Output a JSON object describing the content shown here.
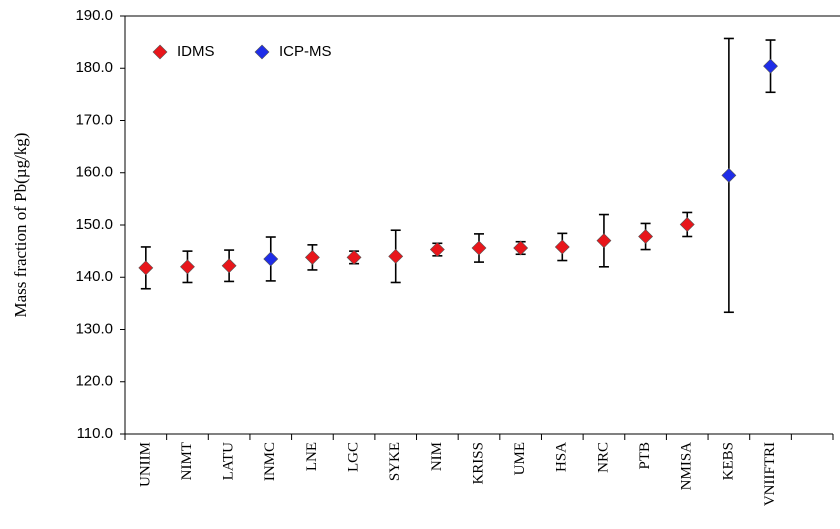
{
  "chart_data": {
    "type": "errorbar",
    "y_label": "Mass fraction of Pb(µg/kg)",
    "categories": [
      "UNIIM",
      "NIMT",
      "LATU",
      "INMC",
      "LNE",
      "LGC",
      "SYKE",
      "NIM",
      "KRISS",
      "UME",
      "HSA",
      "NRC",
      "PTB",
      "NMISA",
      "KEBS",
      "VNIIFTRI",
      null
    ],
    "series": [
      {
        "name": "IDMS",
        "color": "#e8161b",
        "values": [
          141.8,
          142.0,
          142.2,
          null,
          143.8,
          143.8,
          144.0,
          145.3,
          145.6,
          145.6,
          145.8,
          147.0,
          147.8,
          150.1,
          null,
          null,
          null
        ],
        "errors": [
          4.0,
          3.0,
          3.0,
          null,
          2.4,
          1.2,
          5.0,
          1.2,
          2.7,
          1.2,
          2.6,
          5.0,
          2.5,
          2.3,
          null,
          null,
          null
        ]
      },
      {
        "name": "ICP-MS",
        "color": "#1f2de8",
        "values": [
          null,
          null,
          null,
          143.5,
          null,
          null,
          null,
          null,
          null,
          null,
          null,
          null,
          null,
          null,
          159.5,
          180.4,
          null
        ],
        "errors": [
          null,
          null,
          null,
          4.2,
          null,
          null,
          null,
          null,
          null,
          null,
          null,
          null,
          null,
          null,
          26.2,
          5.0,
          null
        ]
      }
    ],
    "ylim": [
      110,
      190
    ],
    "yticks": [
      {
        "value": 110,
        "label": "110.0"
      },
      {
        "value": 120,
        "label": "120.0"
      },
      {
        "value": 130,
        "label": "130.0"
      },
      {
        "value": 140,
        "label": "140.0"
      },
      {
        "value": 150,
        "label": "150.0"
      },
      {
        "value": 160,
        "label": "160.0"
      },
      {
        "value": 170,
        "label": "170.0"
      },
      {
        "value": 180,
        "label": "180.0"
      },
      {
        "value": 190,
        "label": "190.0"
      }
    ],
    "legend": "top-left"
  }
}
